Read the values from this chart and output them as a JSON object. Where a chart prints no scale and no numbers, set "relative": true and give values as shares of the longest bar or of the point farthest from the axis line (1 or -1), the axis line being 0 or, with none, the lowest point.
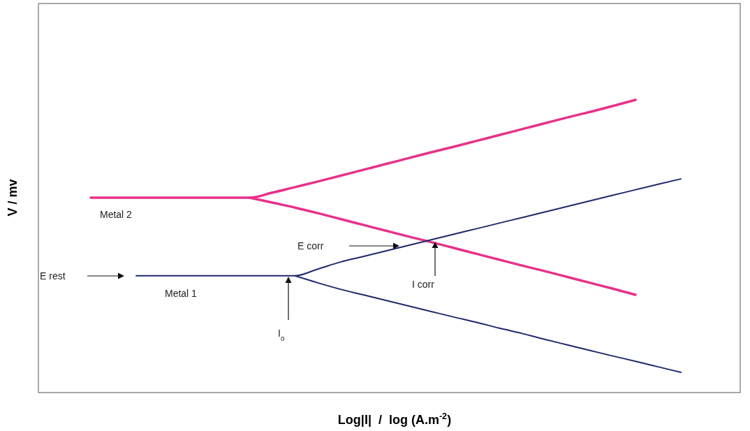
{
  "chart_data": {
    "type": "line",
    "relative": true,
    "xlabel": "Log|I|  /  log (A.m$^{-2}$)",
    "ylabel": "V / mv",
    "categories": [
      null,
      null,
      null,
      null,
      null,
      null,
      null,
      null,
      null,
      null,
      null,
      null,
      null,
      null,
      null,
      null,
      null,
      null,
      null,
      null,
      null,
      null,
      null,
      null,
      null,
      null,
      null
    ],
    "series": [
      {
        "color": "#e8318a",
        "values": [
          0.666,
          0.666,
          0.666,
          0.666,
          0.666,
          0.666,
          0.666,
          0.666,
          0.683,
          0.702,
          0.721,
          0.741,
          0.761,
          0.781,
          0.801,
          0.821,
          0.84,
          0.86,
          0.88,
          0.9,
          0.92,
          0.94,
          0.959,
          0.979,
          1,
          null,
          null
        ]
      },
      {
        "color": "#e8318a",
        "values": [
          null,
          null,
          null,
          null,
          null,
          null,
          null,
          0.666,
          0.649,
          0.632,
          0.613,
          0.593,
          0.573,
          0.553,
          0.533,
          0.514,
          0.494,
          0.474,
          0.454,
          0.434,
          0.415,
          0.395,
          0.375,
          0.355,
          0.334,
          null,
          null
        ]
      },
      {
        "color": "#1f2a6b",
        "values": [
          null,
          null,
          0.399,
          0.399,
          0.399,
          0.399,
          0.399,
          0.399,
          0.399,
          0.399,
          0.422,
          0.446,
          0.465,
          0.484,
          0.503,
          0.522,
          0.541,
          0.56,
          0.579,
          0.598,
          0.617,
          0.636,
          0.655,
          0.674,
          0.693,
          0.712,
          0.73
        ]
      },
      {
        "color": "#1f2a6b",
        "values": [
          null,
          null,
          null,
          null,
          null,
          null,
          null,
          null,
          null,
          0.399,
          0.375,
          0.353,
          0.334,
          0.315,
          0.296,
          0.277,
          0.258,
          0.24,
          0.22,
          0.202,
          0.182,
          0.163,
          0.144,
          0.125,
          0.107,
          0.088,
          0.069
        ]
      }
    ],
    "annotations": [
      "Metal 2",
      "Metal 1",
      "E rest",
      "E corr",
      "I corr",
      "I$_{0}$"
    ]
  }
}
